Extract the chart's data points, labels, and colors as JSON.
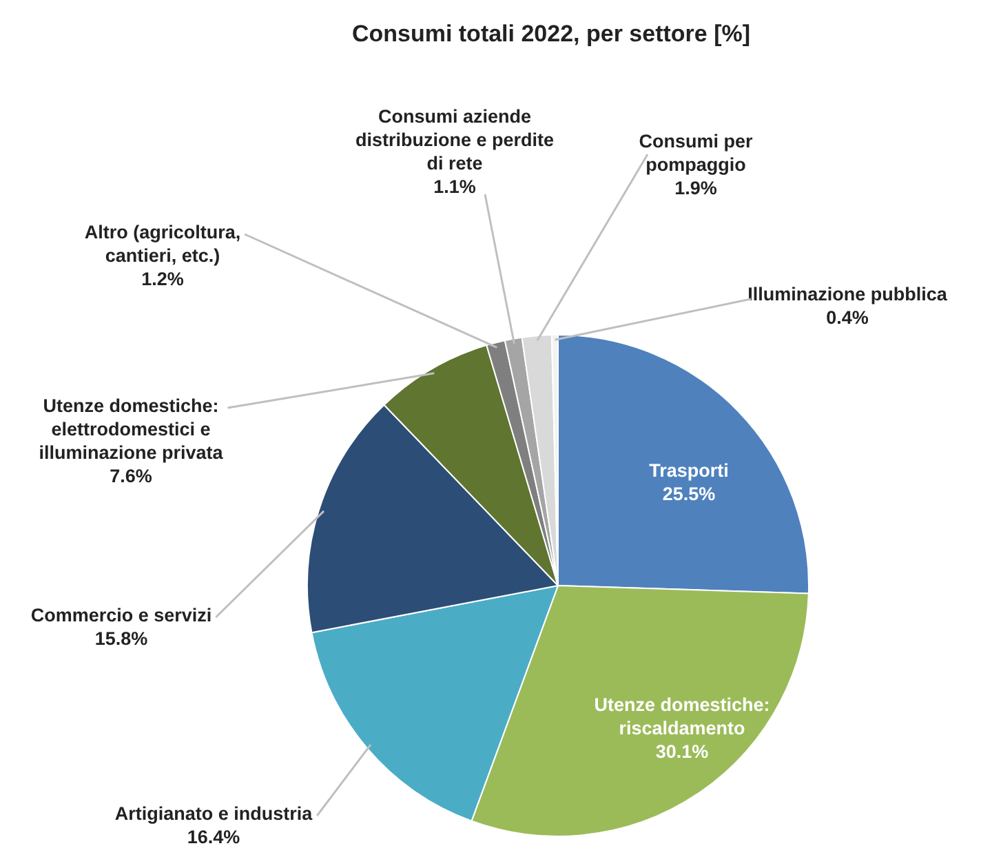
{
  "chart_data": {
    "type": "pie",
    "title": "Consumi totali 2022, per settore [%]",
    "categories": [
      "Trasporti",
      "Utenze domestiche: riscaldamento",
      "Artigianato e industria",
      "Commercio e servizi",
      "Utenze domestiche: elettrodomestici e illuminazione privata",
      "Altro (agricoltura, cantieri, etc.)",
      "Consumi aziende distribuzione e perdite di rete",
      "Consumi per pompaggio",
      "Illuminazione pubblica"
    ],
    "values": [
      25.5,
      30.1,
      16.4,
      15.8,
      7.6,
      1.2,
      1.1,
      1.9,
      0.4
    ],
    "value_labels": [
      "25.5%",
      "30.1%",
      "16.4%",
      "15.8%",
      "7.6%",
      "1.2%",
      "1.1%",
      "1.9%",
      "0.4%"
    ],
    "colors": [
      "#4f81bd",
      "#9bbb59",
      "#4bacc6",
      "#2c4d75",
      "#5f7530",
      "#7f7f7f",
      "#a5a5a5",
      "#d9d9d9",
      "#f2f2f2"
    ]
  }
}
